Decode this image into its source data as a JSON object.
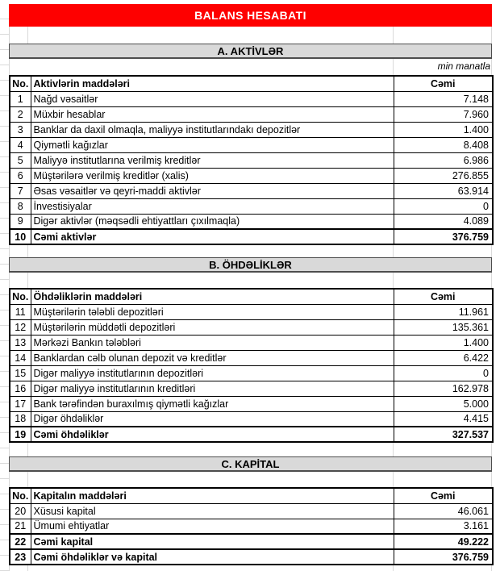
{
  "title": "BALANS HESABATI",
  "unit_note": "min manatla",
  "colors": {
    "banner_bg": "#fe0000",
    "banner_text": "#ffffff",
    "section_header_bg": "#d9d9d9"
  },
  "sections": [
    {
      "header": "A. AKTİVLƏR",
      "columns": {
        "no": "No.",
        "item": "Aktivlərin maddələri",
        "value": "Cəmi"
      },
      "rows": [
        {
          "no": "1",
          "item": "Nağd vəsaitlər",
          "value": "7.148"
        },
        {
          "no": "2",
          "item": "Müxbir hesablar",
          "value": "7.960"
        },
        {
          "no": "3",
          "item": "Banklar da daxil olmaqla, maliyyə institutlarındakı depozitlər",
          "value": "1.400"
        },
        {
          "no": "4",
          "item": "Qiymətli kağızlar",
          "value": "8.408"
        },
        {
          "no": "5",
          "item": "Maliyyə institutlarına verilmiş kreditlər",
          "value": "6.986"
        },
        {
          "no": "6",
          "item": "Müştərilərə verilmiş kreditlər (xalis)",
          "value": "276.855"
        },
        {
          "no": "7",
          "item": "Əsas vəsaitlər və qeyri-maddi aktivlər",
          "value": "63.914"
        },
        {
          "no": "8",
          "item": "İnvestisiyalar",
          "value": "0"
        },
        {
          "no": "9",
          "item": "Digər aktivlər (məqsədli ehtiyattları çıxılmaqla)",
          "value": "4.089"
        },
        {
          "no": "10",
          "item": "Cəmi aktivlər",
          "value": "376.759",
          "total": true
        }
      ]
    },
    {
      "header": "B. ÖHDƏLİKLƏR",
      "columns": {
        "no": "No.",
        "item": "Öhdəliklərin maddələri",
        "value": "Cəmi"
      },
      "rows": [
        {
          "no": "11",
          "item": "Müştərilərin tələbli depozitləri",
          "value": "11.961"
        },
        {
          "no": "12",
          "item": "Müştərilərin müddətli depozitləri",
          "value": "135.361"
        },
        {
          "no": "13",
          "item": "Mərkəzi Bankın tələbləri",
          "value": "1.400"
        },
        {
          "no": "14",
          "item": "Banklardan cəlb olunan depozit və kreditlər",
          "value": "6.422"
        },
        {
          "no": "15",
          "item": "Digər maliyyə institutlarının depozitləri",
          "value": "0"
        },
        {
          "no": "16",
          "item": "Digər maliyyə institutlarının kreditləri",
          "value": "162.978"
        },
        {
          "no": "17",
          "item": "Bank tərəfindən buraxılmış qiymətli kağızlar",
          "value": "5.000"
        },
        {
          "no": "18",
          "item": "Digər öhdəliklər",
          "value": "4.415"
        },
        {
          "no": "19",
          "item": "Cəmi öhdəliklər",
          "value": "327.537",
          "total": true
        }
      ]
    },
    {
      "header": "C. KAPİTAL",
      "columns": {
        "no": "No.",
        "item": "Kapitalın maddələri",
        "value": "Cəmi"
      },
      "rows": [
        {
          "no": "20",
          "item": "Xüsusi kapital",
          "value": "46.061"
        },
        {
          "no": "21",
          "item": "Ümumi ehtiyatlar",
          "value": "3.161"
        },
        {
          "no": "22",
          "item": "Cəmi kapital",
          "value": "49.222",
          "total": true
        },
        {
          "no": "23",
          "item": "Cəmi öhdəliklər və kapital",
          "value": "376.759",
          "total": true
        }
      ]
    }
  ]
}
